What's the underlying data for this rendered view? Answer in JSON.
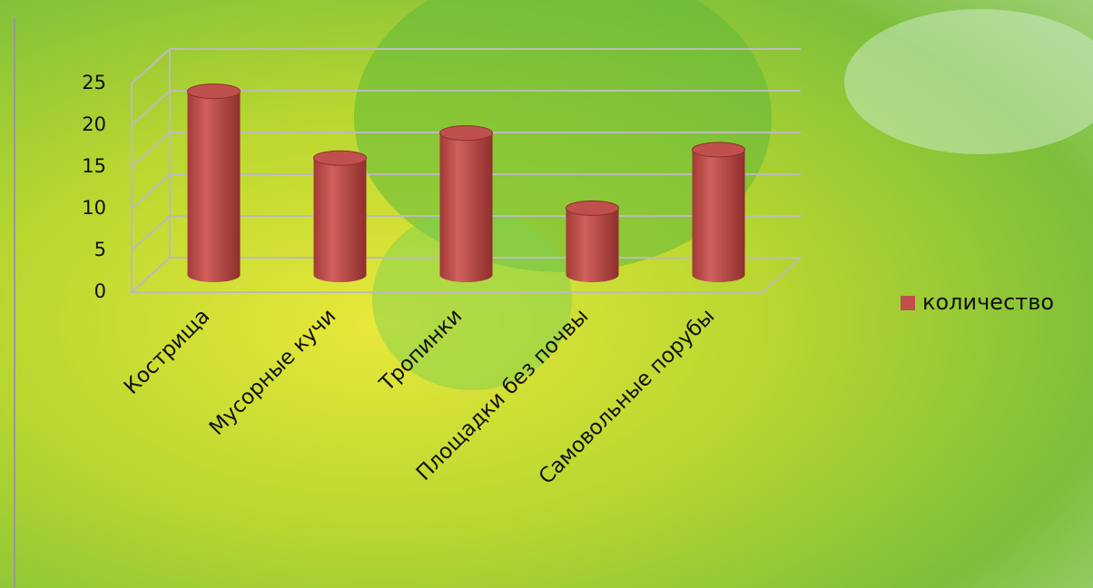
{
  "chart_data": {
    "type": "bar3d",
    "categories": [
      "Кострища",
      "Мусорные кучи",
      "Тропинки",
      "Площадки без почвы",
      "Самовольные порубы"
    ],
    "series": [
      {
        "name": "количество",
        "color": "#c0504d",
        "values": [
          22,
          14,
          17,
          8,
          15
        ]
      }
    ],
    "ylim": [
      0,
      25
    ],
    "yticks": [
      0,
      5,
      10,
      15,
      20,
      25
    ],
    "grid": true,
    "legend": "right"
  }
}
